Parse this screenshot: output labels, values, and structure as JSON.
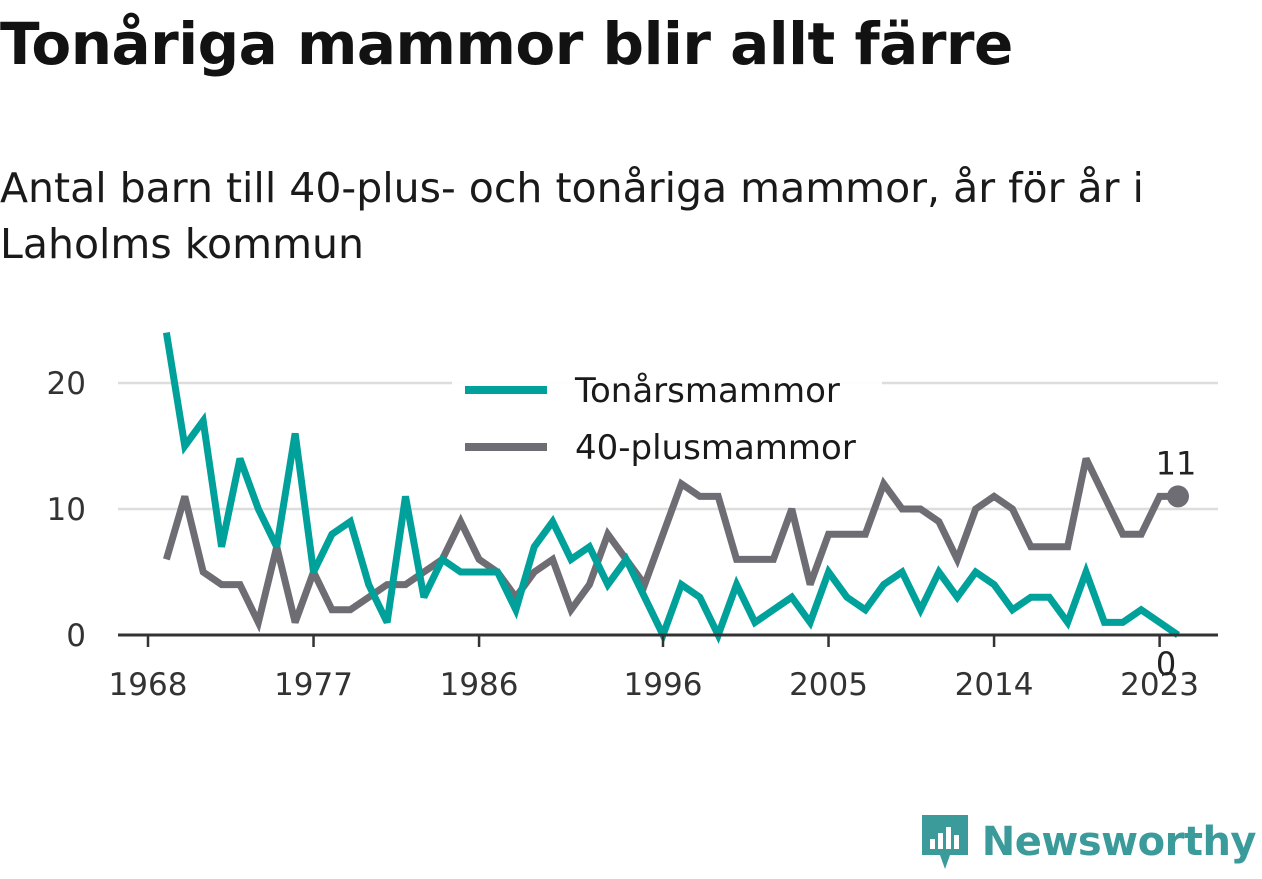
{
  "title": "Tonåriga mammor blir allt färre",
  "subtitle": "Antal barn till 40-plus- och tonåriga mammor, år för år i Laholms kommun",
  "brand": "Newsworthy",
  "chart_data": {
    "type": "line",
    "x": [
      1969,
      1970,
      1971,
      1972,
      1973,
      1974,
      1975,
      1976,
      1977,
      1978,
      1979,
      1980,
      1981,
      1982,
      1983,
      1984,
      1985,
      1986,
      1987,
      1988,
      1989,
      1990,
      1991,
      1992,
      1993,
      1994,
      1995,
      1996,
      1997,
      1998,
      1999,
      2000,
      2001,
      2002,
      2003,
      2004,
      2005,
      2006,
      2007,
      2008,
      2009,
      2010,
      2011,
      2012,
      2013,
      2014,
      2015,
      2016,
      2017,
      2018,
      2019,
      2020,
      2021,
      2022,
      2023,
      2024
    ],
    "series": [
      {
        "name": "Tonårsmammor",
        "color": "#00a19a",
        "values": [
          24,
          15,
          17,
          7,
          14,
          10,
          7,
          16,
          5,
          8,
          9,
          4,
          1,
          11,
          3,
          6,
          5,
          5,
          5,
          2,
          7,
          9,
          6,
          7,
          4,
          6,
          3,
          0,
          4,
          3,
          0,
          4,
          1,
          2,
          3,
          1,
          5,
          3,
          2,
          4,
          5,
          2,
          5,
          3,
          5,
          4,
          2,
          3,
          3,
          1,
          5,
          1,
          1,
          2,
          1,
          0
        ]
      },
      {
        "name": "40-plusmammor",
        "color": "#6e6d73",
        "values": [
          6,
          11,
          5,
          4,
          4,
          1,
          7,
          1,
          5,
          2,
          2,
          3,
          4,
          4,
          5,
          6,
          9,
          6,
          5,
          3,
          5,
          6,
          2,
          4,
          8,
          6,
          4,
          8,
          12,
          11,
          11,
          6,
          6,
          6,
          10,
          4,
          8,
          8,
          8,
          12,
          10,
          10,
          9,
          6,
          10,
          11,
          10,
          7,
          7,
          7,
          14,
          11,
          8,
          8,
          11,
          11
        ]
      }
    ],
    "x_ticks": [
      1968,
      1977,
      1986,
      1996,
      2005,
      2014,
      2023
    ],
    "y_ticks": [
      0,
      10,
      20
    ],
    "ylim": [
      0,
      25
    ],
    "xlim": [
      1968,
      2027
    ],
    "grid": "horizontal",
    "legend_placement": "top-center",
    "end_labels": {
      "Tonårsmammor": "0",
      "40-plusmammor": "11"
    }
  }
}
